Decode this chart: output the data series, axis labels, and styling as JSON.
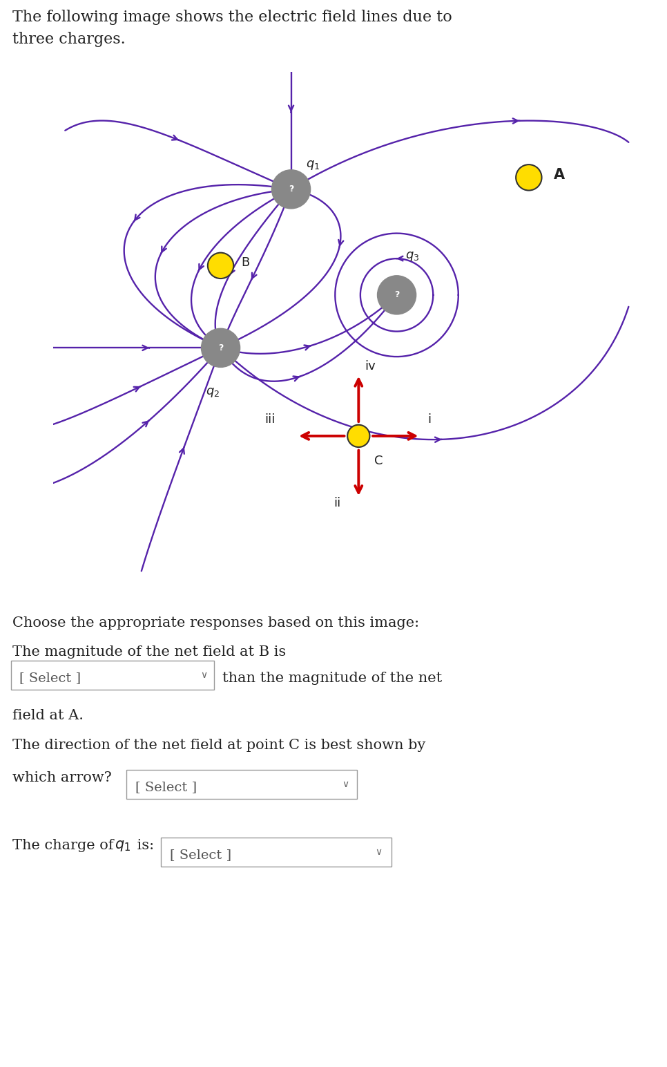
{
  "bg_color": "#ffffff",
  "field_line_color": "#5522aa",
  "arrow_color": "#cc0000",
  "charge_color": "#888888",
  "dot_yellow": "#ffdd00",
  "dot_outline": "#333333",
  "font_size_title": 16,
  "font_size_body": 15,
  "title_line1": "The following image shows the electric field lines due to",
  "title_line2": "three charges.",
  "question1": "Choose the appropriate responses based on this image:",
  "question2": "The magnitude of the net field at B is",
  "after_dropdown1": "than the magnitude of the net",
  "field_at_A": "field at A.",
  "question3": "The direction of the net field at point C is best shown by",
  "which_arrow": "which arrow?",
  "lw": 1.7
}
